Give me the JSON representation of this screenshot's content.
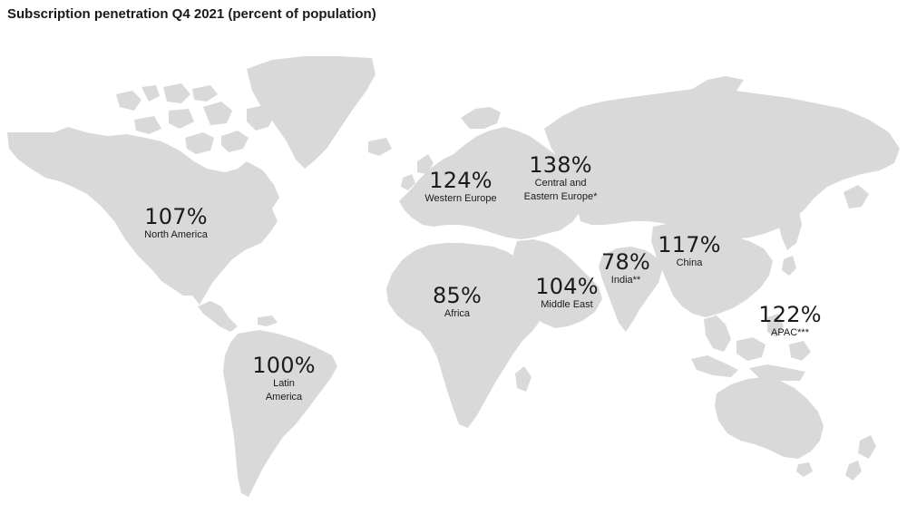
{
  "title": "Subscription penetration Q4 2021 (percent of population)",
  "colors": {
    "land": "#d9d9d9",
    "text": "#1a1a1a",
    "background": "#ffffff"
  },
  "regions": [
    {
      "id": "north-america",
      "value": "107%",
      "name": "North America"
    },
    {
      "id": "latin-america",
      "value": "100%",
      "name": "Latin\nAmerica"
    },
    {
      "id": "western-europe",
      "value": "124%",
      "name": "Western Europe"
    },
    {
      "id": "central-eastern-europe",
      "value": "138%",
      "name": "Central and\nEastern Europe*"
    },
    {
      "id": "africa",
      "value": "85%",
      "name": "Africa"
    },
    {
      "id": "middle-east",
      "value": "104%",
      "name": "Middle East"
    },
    {
      "id": "india",
      "value": "78%",
      "name": "India**"
    },
    {
      "id": "china",
      "value": "117%",
      "name": "China"
    },
    {
      "id": "apac",
      "value": "122%",
      "name": "APAC***"
    }
  ]
}
